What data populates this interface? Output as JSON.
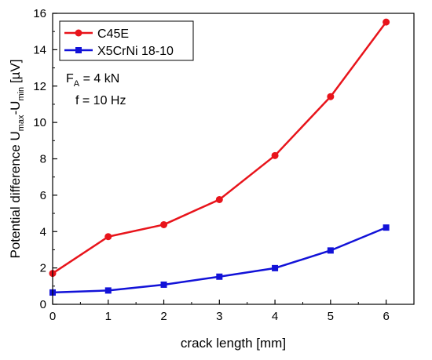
{
  "chart_data": {
    "type": "line",
    "xlabel": "crack length [mm]",
    "ylabel": {
      "main": "Potential difference U",
      "sub1": "max",
      "mid": "-U",
      "sub2": "min",
      "unit": " [µV]"
    },
    "xlim": [
      0,
      6.5
    ],
    "ylim": [
      0,
      16
    ],
    "xticks": [
      0,
      1,
      2,
      3,
      4,
      5,
      6
    ],
    "yticks": [
      0,
      2,
      4,
      6,
      8,
      10,
      12,
      14,
      16
    ],
    "x": [
      0,
      1,
      2,
      3,
      4,
      5,
      6
    ],
    "series": [
      {
        "name": "C45E",
        "color": "#e8141b",
        "marker": "circle",
        "values": [
          1.7,
          3.72,
          4.38,
          5.76,
          8.18,
          11.42,
          15.52
        ]
      },
      {
        "name": "X5CrNi 18-10",
        "color": "#1212d8",
        "marker": "square",
        "values": [
          0.65,
          0.76,
          1.08,
          1.52,
          1.99,
          2.96,
          4.22
        ]
      }
    ],
    "legend_position": "top-left",
    "annotations": {
      "force": {
        "main": "F",
        "sub": "A",
        "rest": " = 4 kN"
      },
      "frequency": "f = 10 Hz"
    },
    "grid": false
  }
}
